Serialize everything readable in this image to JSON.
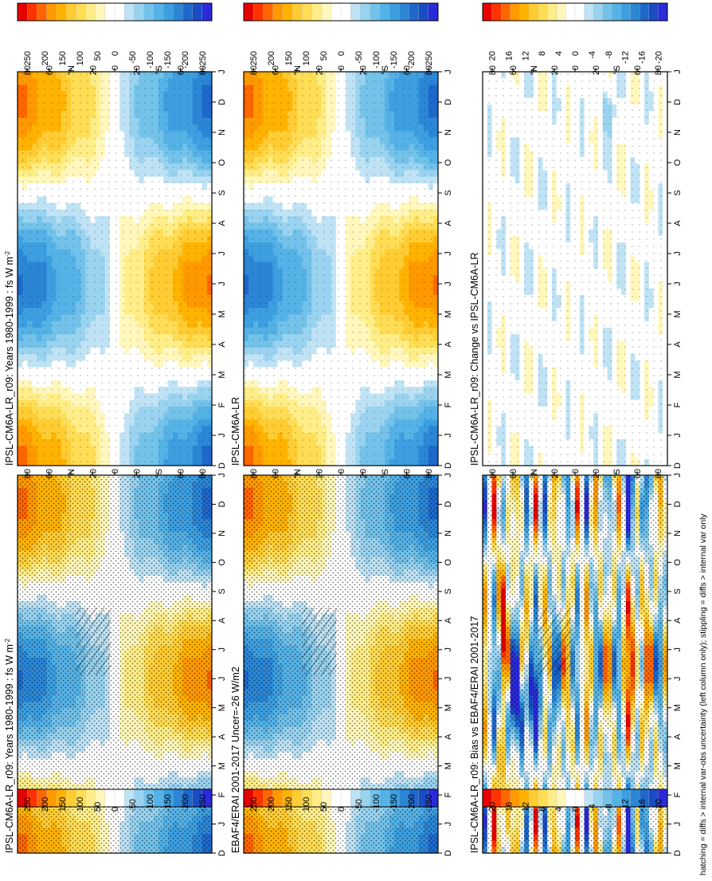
{
  "figure": {
    "footnote": "hatching = diffs > internal var-obs uncertainty (left column only); stippling = diffs > internal var only",
    "units_superscript": "-2"
  },
  "chart_data": [
    {
      "id": "p1",
      "type": "heatmap",
      "title": "IPSL-CM6A-LR_r09: Years 1980-1999 : fs W m",
      "title_has_units": true,
      "field": "seasonal",
      "x_ticks": [
        "D",
        "J",
        "F",
        "M",
        "A",
        "M",
        "J",
        "J",
        "A",
        "S",
        "O",
        "N",
        "D",
        "J"
      ],
      "y_ticks": [
        "80",
        "60",
        "°N",
        "20",
        "0",
        "20",
        "°S",
        "60",
        "80"
      ],
      "colorbar": [
        "250",
        "200",
        "150",
        "100",
        "50",
        "0",
        "-50",
        "-100",
        "-150",
        "-200",
        "-250"
      ],
      "palette": "main",
      "stipple": "heavy",
      "hatch": true,
      "zlim": [
        -275,
        275
      ]
    },
    {
      "id": "p2",
      "type": "heatmap",
      "title": "IPSL-CM6A-LR_r09: Years 1980-1999 : fs W m",
      "title_has_units": true,
      "field": "seasonal",
      "x_ticks": [
        "D",
        "J",
        "F",
        "M",
        "A",
        "M",
        "J",
        "J",
        "A",
        "S",
        "O",
        "N",
        "D",
        "J"
      ],
      "y_ticks": [
        "80",
        "60",
        "°N",
        "20",
        "0",
        "20",
        "°S",
        "60",
        "80"
      ],
      "colorbar": [
        "250",
        "200",
        "150",
        "100",
        "50",
        "0",
        "-50",
        "-100",
        "-150",
        "-200",
        "-250"
      ],
      "palette": "main",
      "stipple": "light",
      "hatch": false,
      "zlim": [
        -275,
        275
      ]
    },
    {
      "id": "p3",
      "type": "heatmap",
      "title": "EBAF4/ERAI 2001-2017 Uncer=-26 W/m2",
      "title_has_units": false,
      "field": "seasonal",
      "x_ticks": [
        "D",
        "J",
        "F",
        "M",
        "A",
        "M",
        "J",
        "J",
        "A",
        "S",
        "O",
        "N",
        "D",
        "J"
      ],
      "y_ticks": [
        "80",
        "60",
        "°N",
        "20",
        "0",
        "20",
        "°S",
        "60",
        "80"
      ],
      "colorbar": [
        "250",
        "200",
        "150",
        "100",
        "50",
        "0",
        "-50",
        "-100",
        "-150",
        "-200",
        "-250"
      ],
      "palette": "main",
      "stipple": "heavy",
      "hatch": true,
      "zlim": [
        -275,
        275
      ]
    },
    {
      "id": "p4",
      "type": "heatmap",
      "title": "IPSL-CM6A-LR",
      "title_has_units": false,
      "field": "seasonal",
      "x_ticks": [
        "D",
        "J",
        "F",
        "M",
        "A",
        "M",
        "J",
        "J",
        "A",
        "S",
        "O",
        "N",
        "D",
        "J"
      ],
      "y_ticks": [
        "80",
        "60",
        "°N",
        "20",
        "0",
        "20",
        "°S",
        "60",
        "80"
      ],
      "colorbar": [
        "250",
        "200",
        "150",
        "100",
        "50",
        "0",
        "-50",
        "-100",
        "-150",
        "-200",
        "-250"
      ],
      "palette": "main",
      "stipple": "light",
      "hatch": false,
      "zlim": [
        -275,
        275
      ]
    },
    {
      "id": "p5",
      "type": "heatmap",
      "title": "IPSL-CM6A-LR_r09: Bias vs EBAF4/ERAI 2001-2017",
      "title_has_units": false,
      "field": "bias",
      "x_ticks": [
        "D",
        "J",
        "F",
        "M",
        "A",
        "M",
        "J",
        "J",
        "A",
        "S",
        "O",
        "N",
        "D",
        "J"
      ],
      "y_ticks": [
        "80",
        "60",
        "°N",
        "20",
        "0",
        "20",
        "°S",
        "60",
        "80"
      ],
      "colorbar": [
        "20",
        "16",
        "12",
        "8",
        "4",
        "0",
        "-4",
        "-8",
        "-12",
        "-16",
        "-20"
      ],
      "palette": "diff",
      "stipple": "heavy",
      "hatch": true,
      "zlim": [
        -22,
        22
      ]
    },
    {
      "id": "p6",
      "type": "heatmap",
      "title": "IPSL-CM6A-LR_r09: Change vs IPSL-CM6A-LR",
      "title_has_units": false,
      "field": "change",
      "x_ticks": [
        "D",
        "J",
        "F",
        "M",
        "A",
        "M",
        "J",
        "J",
        "A",
        "S",
        "O",
        "N",
        "D",
        "J"
      ],
      "y_ticks": [
        "80",
        "60",
        "°N",
        "20",
        "0",
        "20",
        "°S",
        "60",
        "80"
      ],
      "colorbar": [
        "20",
        "16",
        "12",
        "8",
        "4",
        "0",
        "-4",
        "-8",
        "-12",
        "-16",
        "-20"
      ],
      "palette": "diff",
      "stipple": "light",
      "hatch": false,
      "zlim": [
        -22,
        22
      ]
    }
  ],
  "colors": {
    "main": [
      "#e60000",
      "#ff3300",
      "#ff6600",
      "#ff9900",
      "#ffb300",
      "#ffcc33",
      "#ffdd55",
      "#ffee88",
      "#fff7bb",
      "#ffffff",
      "#ffffff",
      "#bfe3f5",
      "#99d3f0",
      "#73c2ea",
      "#55b2e6",
      "#3d9fe0",
      "#2b86d6",
      "#1e68cc",
      "#1a4dc4",
      "#2a2ad9"
    ],
    "diff": [
      "#e60000",
      "#ff3300",
      "#ff6600",
      "#ff9900",
      "#ffb300",
      "#ffcc33",
      "#ffdd55",
      "#ffee88",
      "#fff7bb",
      "#ffffff",
      "#ffffff",
      "#bfe3f5",
      "#99d3f0",
      "#73c2ea",
      "#55b2e6",
      "#3d9fe0",
      "#2b86d6",
      "#1e68cc",
      "#1a4dc4",
      "#2a2ad9"
    ]
  }
}
